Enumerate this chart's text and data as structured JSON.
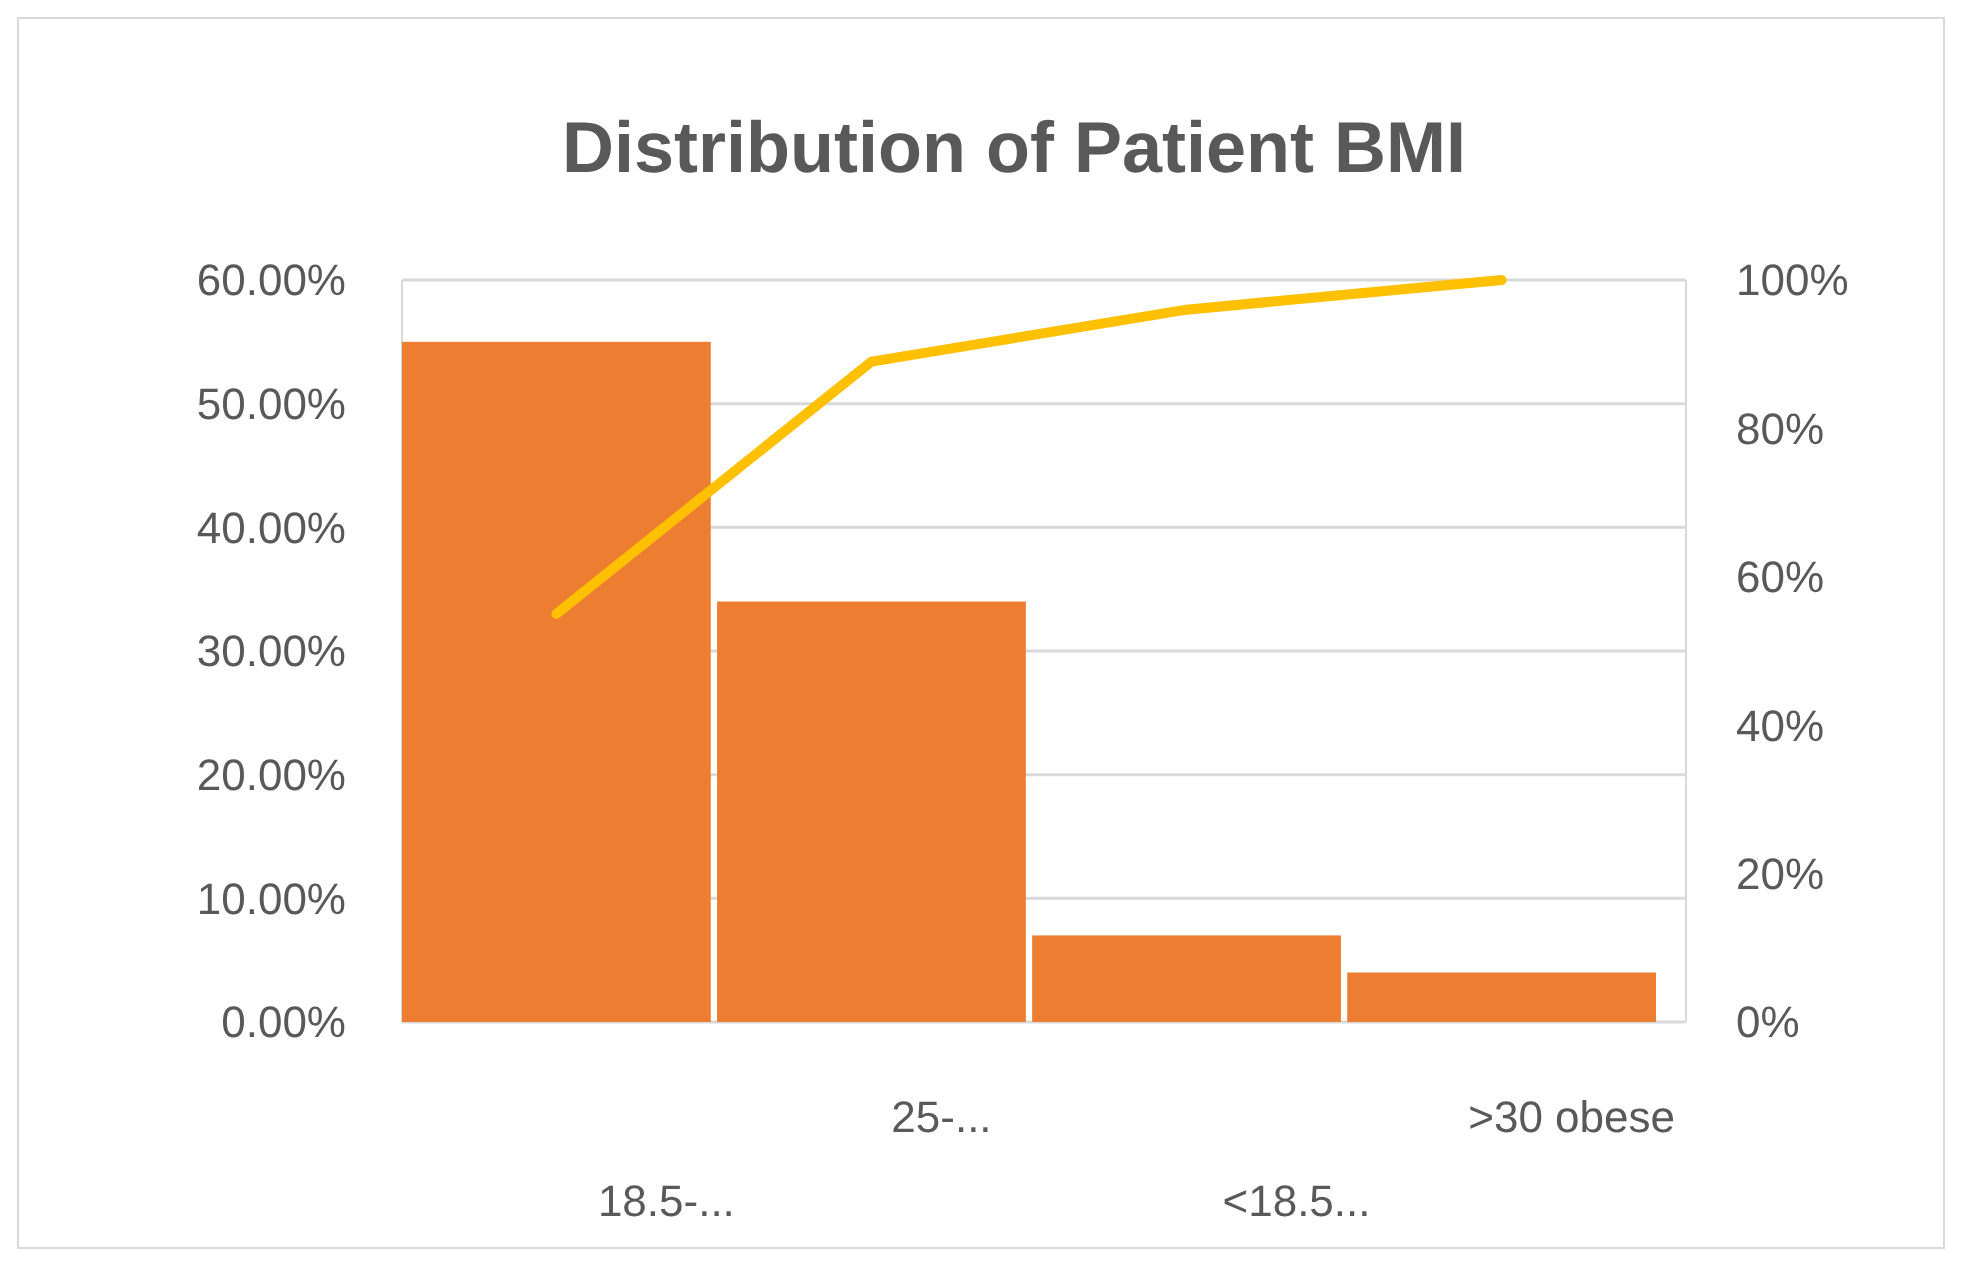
{
  "chart_data": {
    "type": "bar",
    "title": "Distribution of Patient BMI",
    "categories": [
      "18.5-...",
      "25-...",
      "<18.5...",
      ">30 obese"
    ],
    "series": [
      {
        "color": "#ed7d31",
        "values": [
          55,
          34,
          7,
          4
        ]
      },
      {
        "type": "line",
        "color": "#ffc000",
        "axis": "y2",
        "values": [
          55,
          89,
          96,
          100
        ]
      }
    ],
    "ylim": [
      0,
      60
    ],
    "yticks": [
      {
        "value": 0,
        "label": "0.00%"
      },
      {
        "value": 10,
        "label": "10.00%"
      },
      {
        "value": 20,
        "label": "20.00%"
      },
      {
        "value": 30,
        "label": "30.00%"
      },
      {
        "value": 40,
        "label": "40.00%"
      },
      {
        "value": 50,
        "label": "50.00%"
      },
      {
        "value": 60,
        "label": "60.00%"
      }
    ],
    "y2lim": [
      0,
      100
    ],
    "y2ticks": [
      {
        "value": 0,
        "label": "0%"
      },
      {
        "value": 20,
        "label": "20%"
      },
      {
        "value": 40,
        "label": "40%"
      },
      {
        "value": 60,
        "label": "60%"
      },
      {
        "value": 80,
        "label": "80%"
      },
      {
        "value": 100,
        "label": "100%"
      }
    ],
    "grid": "y",
    "marker": "none",
    "line_style": "solid"
  }
}
